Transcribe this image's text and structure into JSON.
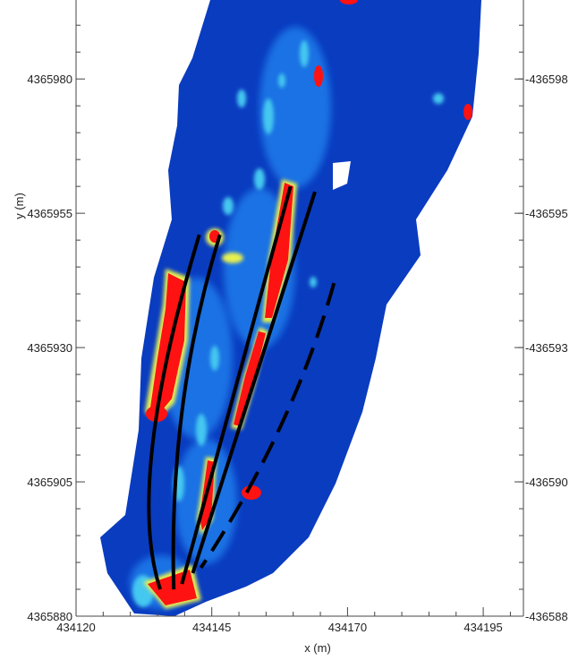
{
  "chart_data": {
    "type": "heatmap",
    "title": "",
    "xlabel": "x (m)",
    "ylabel": "y (m)",
    "xlim": [
      434120,
      434202.4
    ],
    "ylim": [
      4365880,
      4365994.7
    ],
    "x_ticks": [
      "434120",
      "434145",
      "434170",
      "434195"
    ],
    "y_ticks": [
      "4365880",
      "4365905",
      "4365930",
      "4365955",
      "4365980"
    ],
    "right_y_ticks": [
      "436588",
      "436590",
      "436593",
      "436595",
      "436598"
    ],
    "x_tick_values": [
      434120,
      434145,
      434170,
      434195
    ],
    "y_tick_values": [
      4365880,
      4365905,
      4365930,
      4365955,
      4365980
    ],
    "minor_tick_interval": 5,
    "grid": false,
    "colormap": [
      "#0a2fb0",
      "#1a6be0",
      "#40c8f0",
      "#e8f050",
      "#ff1010"
    ],
    "overlay_lines": [
      {
        "style": "solid",
        "points": [
          [
            434142.7,
            4365951
          ],
          [
            434129,
            4365905
          ],
          [
            434135.5,
            4365885
          ]
        ]
      },
      {
        "style": "solid",
        "points": [
          [
            434146.5,
            4365951
          ],
          [
            434137,
            4365920
          ],
          [
            434138,
            4365885
          ]
        ]
      },
      {
        "style": "solid",
        "points": [
          [
            434159.5,
            4365960
          ],
          [
            434139.5,
            4365886
          ]
        ]
      },
      {
        "style": "solid",
        "points": [
          [
            434164,
            4365959
          ],
          [
            434141.5,
            4365888
          ]
        ]
      },
      {
        "style": "dashed",
        "points": [
          [
            434167.5,
            4365942
          ],
          [
            434160,
            4365915
          ],
          [
            434143,
            4365889
          ]
        ]
      }
    ]
  }
}
